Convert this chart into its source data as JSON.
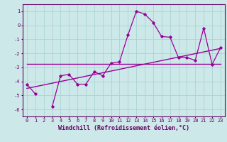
{
  "xlabel": "Windchill (Refroidissement éolien,°C)",
  "bg_color": "#cce8e8",
  "grid_color": "#aad4d4",
  "line_color": "#990099",
  "x_hours": [
    0,
    1,
    2,
    3,
    4,
    5,
    6,
    7,
    8,
    9,
    10,
    11,
    12,
    13,
    14,
    15,
    16,
    17,
    18,
    19,
    20,
    21,
    22,
    23
  ],
  "temp_line": [
    -4.2,
    -4.9,
    null,
    -5.8,
    -3.6,
    -3.5,
    -4.2,
    -4.2,
    -3.3,
    -3.6,
    -2.7,
    -2.6,
    -0.7,
    1.0,
    0.8,
    0.2,
    -0.8,
    -0.85,
    -2.3,
    -2.3,
    -2.5,
    -0.2,
    -2.8,
    -1.6
  ],
  "mean_line_x": [
    0,
    23
  ],
  "mean_line_y": [
    -2.75,
    -2.75
  ],
  "diag_line_x": [
    0,
    23
  ],
  "diag_line_y": [
    -4.5,
    -1.65
  ],
  "ylim": [
    -6.5,
    1.5
  ],
  "xlim": [
    -0.5,
    23.5
  ],
  "yticks": [
    1,
    0,
    -1,
    -2,
    -3,
    -4,
    -5,
    -6
  ],
  "xticks": [
    0,
    1,
    2,
    3,
    4,
    5,
    6,
    7,
    8,
    9,
    10,
    11,
    12,
    13,
    14,
    15,
    16,
    17,
    18,
    19,
    20,
    21,
    22,
    23
  ],
  "tick_fontsize": 5.0,
  "xlabel_fontsize": 6.0
}
